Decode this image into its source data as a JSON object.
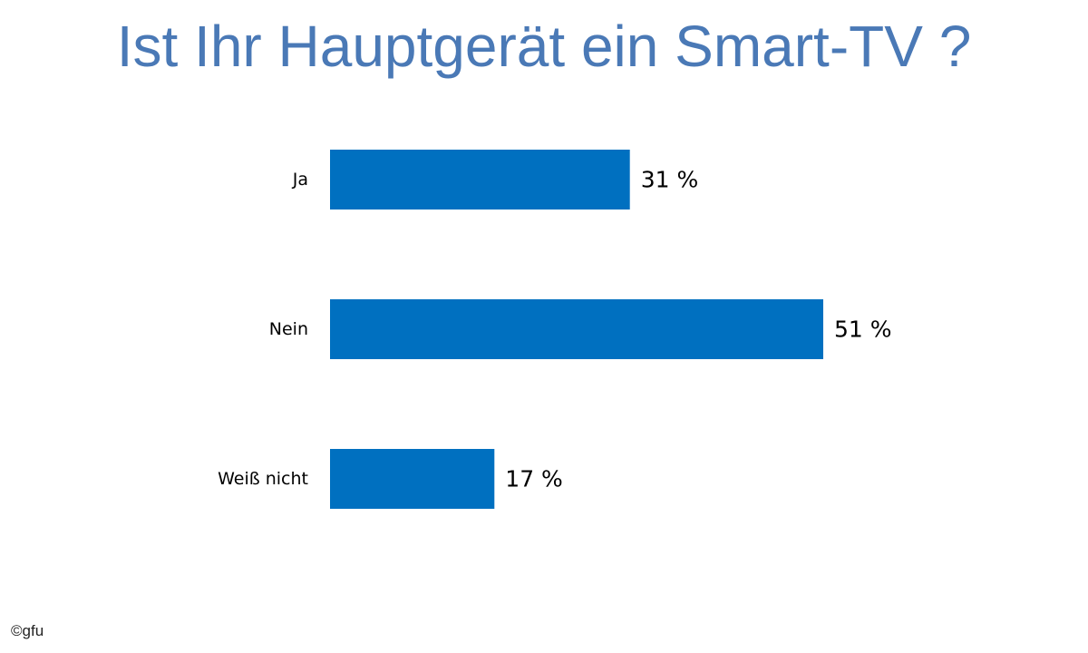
{
  "chart_data": {
    "type": "bar",
    "orientation": "horizontal",
    "title": "Ist Ihr Hauptgerät ein Smart-TV ?",
    "categories": [
      "Ja",
      "Nein",
      "Weiß nicht"
    ],
    "values": [
      31,
      51,
      17
    ],
    "value_labels": [
      "31 %",
      "51 %",
      "17 %"
    ],
    "unit": "%",
    "xlim": [
      0,
      100
    ],
    "grid": false,
    "legend": "none",
    "bar_color": "#0070c0"
  },
  "colors": {
    "title": "#4a79b6",
    "bar": "#0070c0",
    "text": "#000000"
  },
  "footer": {
    "copyright_symbol": "©",
    "copyright_text": "gfu"
  }
}
